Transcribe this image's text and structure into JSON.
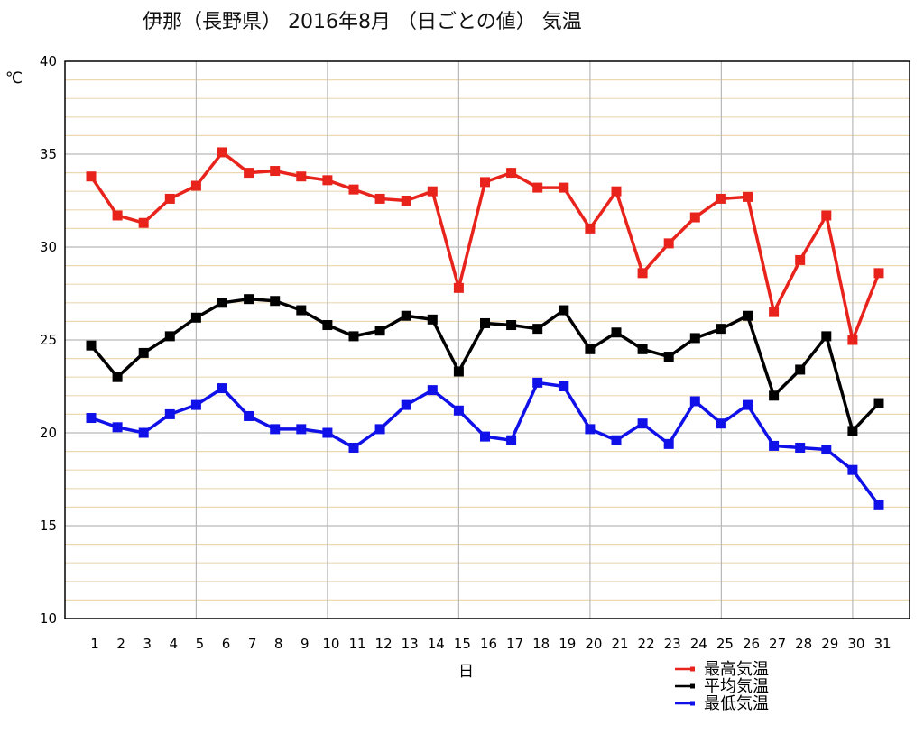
{
  "chart_data": {
    "type": "line",
    "title": "伊那（長野県）  2016年8月   （日ごとの値）   気温",
    "xlabel": "日",
    "ylabel": "℃",
    "ylim": [
      10,
      40
    ],
    "yticks": [
      10,
      15,
      20,
      25,
      30,
      35,
      40
    ],
    "grid": true,
    "legend_position": "bottom-right",
    "categories": [
      "1",
      "2",
      "3",
      "4",
      "5",
      "6",
      "7",
      "8",
      "9",
      "10",
      "11",
      "12",
      "13",
      "14",
      "15",
      "16",
      "17",
      "18",
      "19",
      "20",
      "21",
      "22",
      "23",
      "24",
      "25",
      "26",
      "27",
      "28",
      "29",
      "30",
      "31"
    ],
    "series": [
      {
        "name": "最高気温",
        "color": "#e8231c",
        "values": [
          33.8,
          31.7,
          31.3,
          32.6,
          33.3,
          35.1,
          34.0,
          34.1,
          33.8,
          33.6,
          33.1,
          32.6,
          32.5,
          33.0,
          27.8,
          33.5,
          34.0,
          33.2,
          33.2,
          31.0,
          33.0,
          28.6,
          30.2,
          31.6,
          32.6,
          32.7,
          26.5,
          29.3,
          31.7,
          25.0,
          28.6
        ]
      },
      {
        "name": "平均気温",
        "color": "#000000",
        "values": [
          24.7,
          23.0,
          24.3,
          25.2,
          26.2,
          27.0,
          27.2,
          27.1,
          26.6,
          25.8,
          25.2,
          25.5,
          26.3,
          26.1,
          23.3,
          25.9,
          25.8,
          25.6,
          26.6,
          24.5,
          25.4,
          24.5,
          24.1,
          25.1,
          25.6,
          26.3,
          22.0,
          23.4,
          25.2,
          20.1,
          21.6
        ]
      },
      {
        "name": "最低気温",
        "color": "#1010e8",
        "values": [
          20.8,
          20.3,
          20.0,
          21.0,
          21.5,
          22.4,
          20.9,
          20.2,
          20.2,
          20.0,
          19.2,
          20.2,
          21.5,
          22.3,
          21.2,
          19.8,
          19.6,
          22.7,
          22.5,
          20.2,
          19.6,
          20.5,
          19.4,
          21.7,
          20.5,
          21.5,
          19.3,
          19.2,
          19.1,
          18.0,
          16.1
        ]
      }
    ]
  }
}
